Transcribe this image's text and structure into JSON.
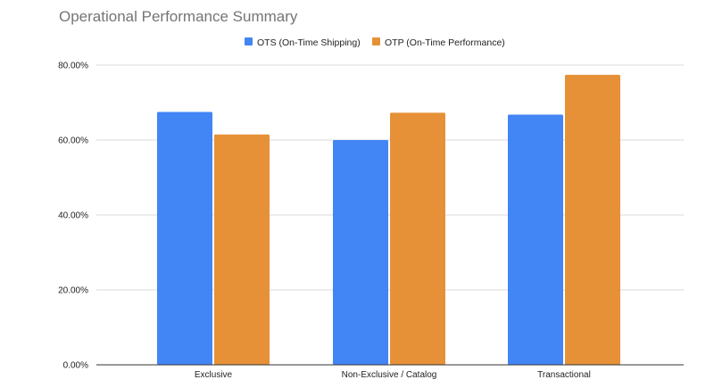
{
  "chart_data": {
    "type": "bar",
    "title": "Operational Performance Summary",
    "categories": [
      "Exclusive",
      "Non-Exclusive / Catalog",
      "Transactional"
    ],
    "series": [
      {
        "name": "OTS (On-Time Shipping)",
        "color": "#4285f4",
        "values": [
          67.5,
          60.0,
          66.8
        ]
      },
      {
        "name": "OTP (On-Time Performance)",
        "color": "#e69138",
        "values": [
          61.5,
          67.3,
          77.4
        ]
      }
    ],
    "yticks": [
      "0.00%",
      "20.00%",
      "40.00%",
      "60.00%",
      "80.00%"
    ],
    "ylim": [
      0,
      80
    ],
    "grid": true,
    "legend_position": "top-center",
    "xlabel": "",
    "ylabel": ""
  }
}
